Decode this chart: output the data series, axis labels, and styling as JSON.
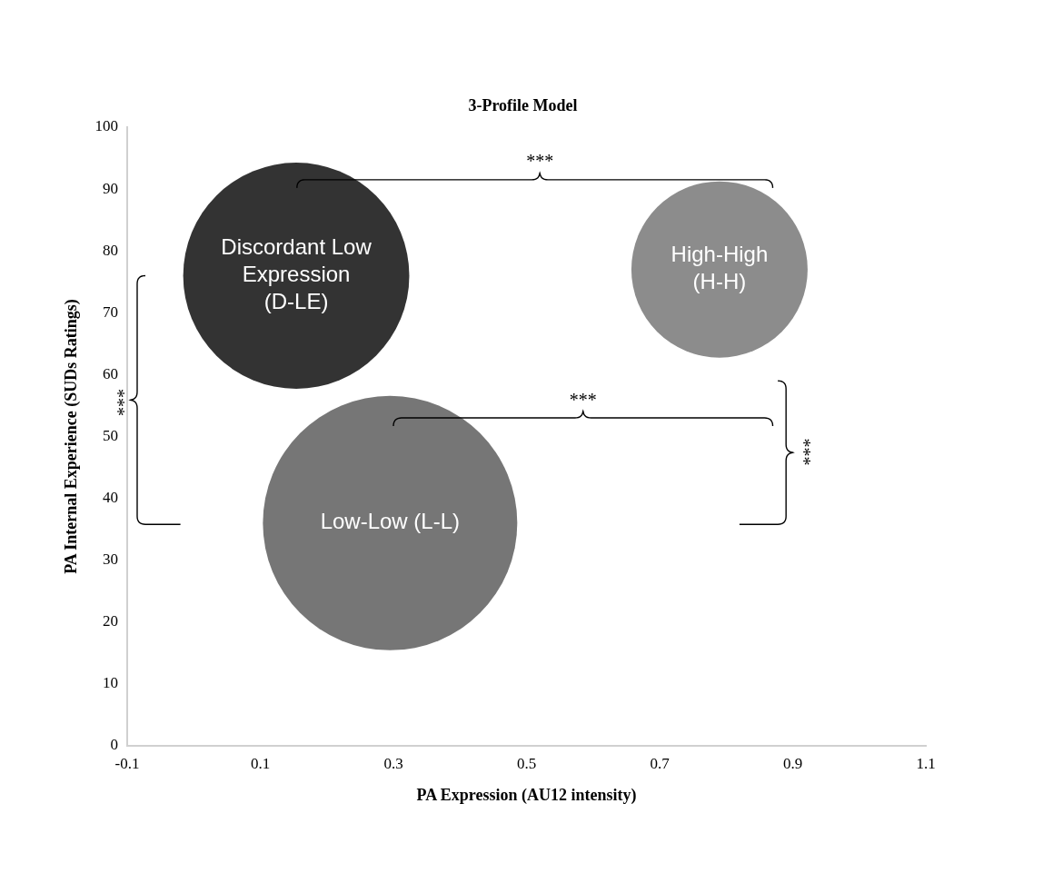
{
  "chart_data": {
    "type": "bubble",
    "title": "3-Profile Model",
    "xlabel": "PA Expression (AU12 intensity)",
    "ylabel": "PA Internal Experience (SUDs Ratings)",
    "series": [
      {
        "name": "Discordant Low Expression (D-LE)",
        "color": "#333333",
        "x": [
          0.154
        ],
        "values": [
          76
        ],
        "sizes": [
          0.79
        ]
      },
      {
        "name": "High-High (H-H)",
        "color": "#8c8c8c",
        "x": [
          0.79
        ],
        "values": [
          77
        ],
        "sizes": [
          0.48
        ]
      },
      {
        "name": "Low-Low (L-L)",
        "color": "#767676",
        "x": [
          0.295
        ],
        "values": [
          36
        ],
        "sizes": [
          1
        ]
      }
    ],
    "xlim": [
      -0.1,
      1.1
    ],
    "xticks": [
      -0.1,
      0.1,
      0.3,
      0.5,
      0.7,
      0.9,
      1.1
    ],
    "ylim": [
      0,
      100
    ],
    "yticks": [
      0,
      10,
      20,
      30,
      40,
      50,
      60,
      70,
      80,
      90,
      100
    ],
    "grid": false,
    "legend": false,
    "annotations": [
      "***",
      "***",
      "***",
      "***"
    ]
  }
}
